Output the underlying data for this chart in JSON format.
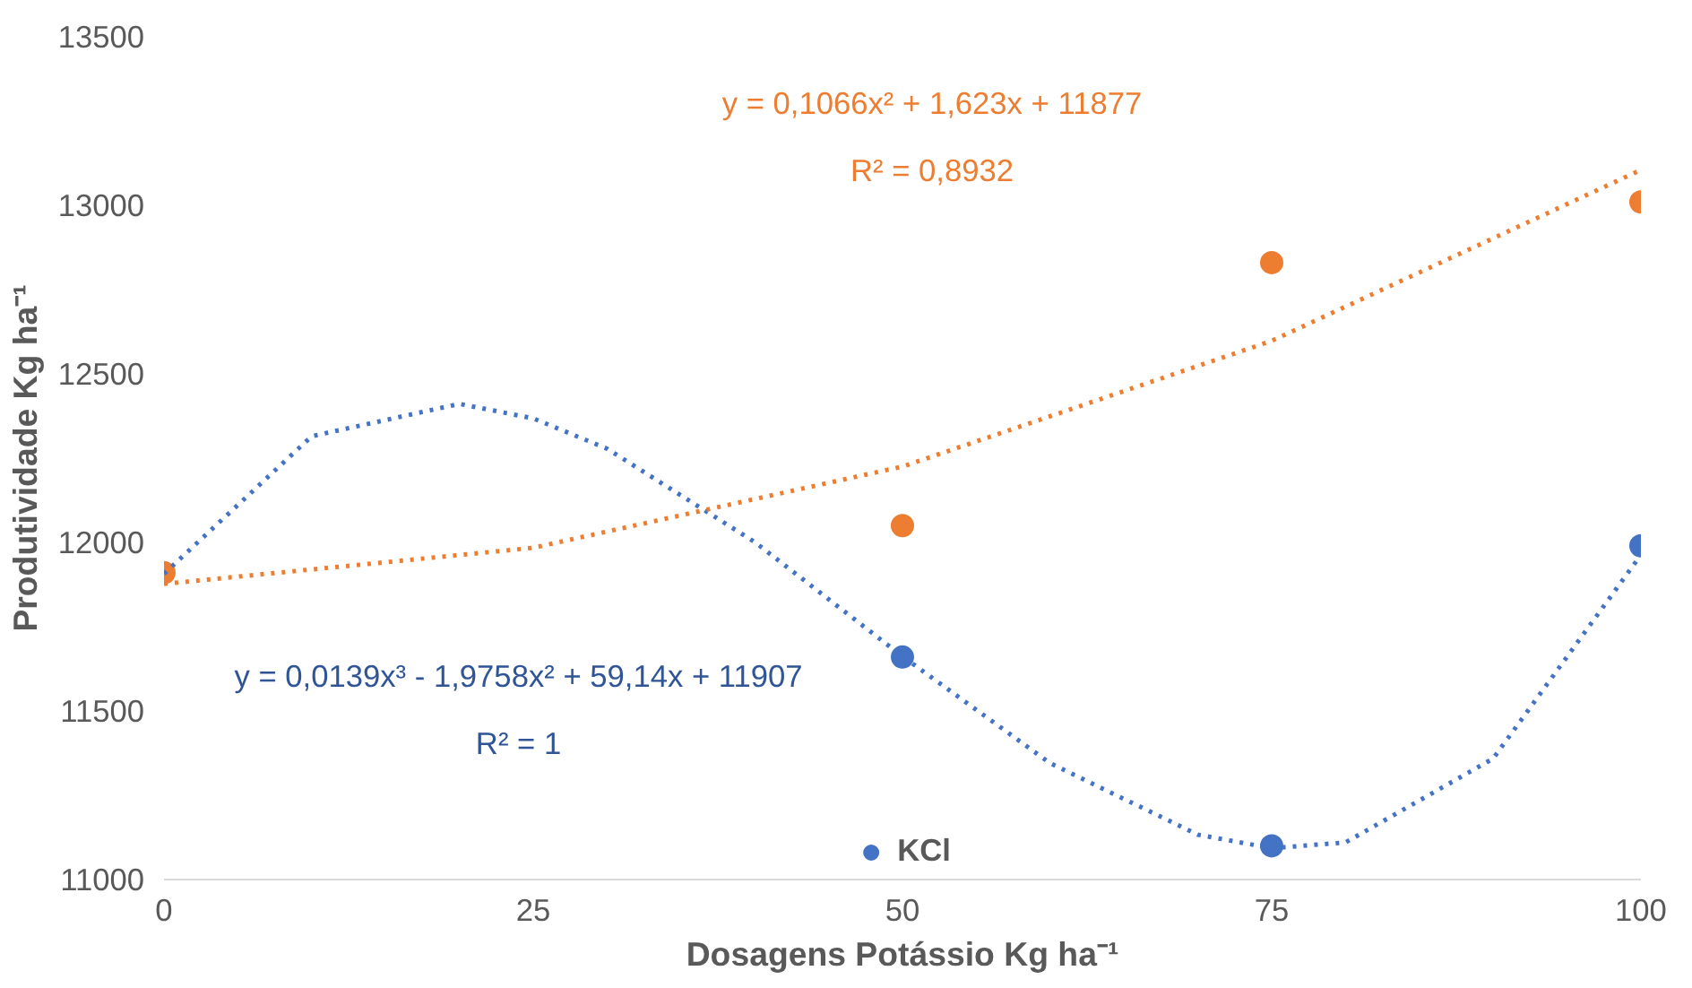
{
  "chart_data": {
    "type": "scatter",
    "xlabel": "Dosagens Potássio Kg ha⁻¹",
    "ylabel": "Produtividade Kg ha⁻¹",
    "xlim": [
      0,
      100
    ],
    "ylim": [
      11000,
      13500
    ],
    "xticks": [
      0,
      25,
      50,
      75,
      100
    ],
    "yticks": [
      11000,
      11500,
      12000,
      12500,
      13000,
      13500
    ],
    "grid": false,
    "legend": "bottom",
    "marker": "circle",
    "series": [
      {
        "name": "KCl",
        "color": "#4472c4",
        "x": [
          50,
          75,
          100
        ],
        "values": [
          11660,
          11100,
          11990
        ]
      },
      {
        "color": "#ed7d31",
        "x": [
          0,
          50,
          75,
          100
        ],
        "values": [
          11910,
          12050,
          12830,
          13010
        ]
      },
      {
        "type": "line",
        "line_style": "dotted",
        "marker": "none",
        "color": "#4472c4",
        "x": [
          0,
          10,
          20,
          25,
          30,
          40,
          50,
          60,
          70,
          75,
          80,
          90,
          100
        ],
        "values": [
          11907,
          12315,
          12411,
          12368,
          12278,
          12001,
          11662,
          11345,
          11133,
          11093,
          11110,
          11359,
          11963
        ]
      },
      {
        "type": "line",
        "line_style": "dotted",
        "marker": "none",
        "color": "#ed7d31",
        "x": [
          0,
          25,
          50,
          75,
          100
        ],
        "values": [
          11877,
          11984,
          12225,
          12598,
          13105
        ]
      }
    ],
    "annotations": [
      "y = 0,1066x² + 1,623x + 11877",
      "R² = 0,8932",
      "y = 0,0139x³ - 1,9758x² + 59,14x + 11907",
      "R² = 1"
    ]
  }
}
